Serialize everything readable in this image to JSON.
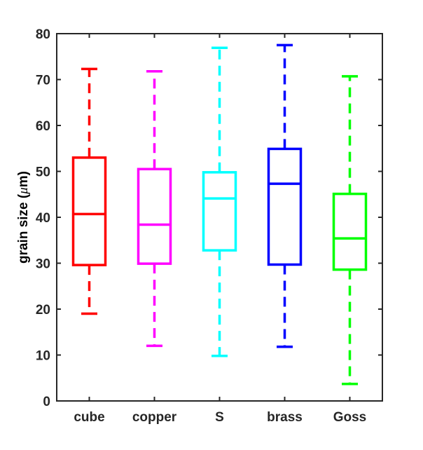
{
  "chart_data": {
    "type": "box",
    "title": "",
    "xlabel": "",
    "ylabel": "grain size (",
    "ylabel_symbol": "μ",
    "ylabel_tail": "m)",
    "ylim": [
      0,
      80
    ],
    "yticks": [
      0,
      10,
      20,
      30,
      40,
      50,
      60,
      70,
      80
    ],
    "grid": false,
    "legend": "none",
    "categories": [
      "cube",
      "copper",
      "S",
      "brass",
      "Goss"
    ],
    "boxes": [
      {
        "label": "cube",
        "color": "#ff0000",
        "whisker_low": 19,
        "q1": 29.6,
        "median": 40.7,
        "q3": 53,
        "whisker_high": 72.3
      },
      {
        "label": "copper",
        "color": "#ff00ff",
        "whisker_low": 12,
        "q1": 29.9,
        "median": 38.4,
        "q3": 50.5,
        "whisker_high": 71.8
      },
      {
        "label": "S",
        "color": "#00ffff",
        "whisker_low": 9.8,
        "q1": 32.8,
        "median": 44.1,
        "q3": 49.8,
        "whisker_high": 76.9
      },
      {
        "label": "brass",
        "color": "#0000ff",
        "whisker_low": 11.8,
        "q1": 29.7,
        "median": 47.3,
        "q3": 54.9,
        "whisker_high": 77.5
      },
      {
        "label": "Goss",
        "color": "#00ff00",
        "whisker_low": 3.7,
        "q1": 28.6,
        "median": 35.4,
        "q3": 45.1,
        "whisker_high": 70.7
      }
    ]
  }
}
